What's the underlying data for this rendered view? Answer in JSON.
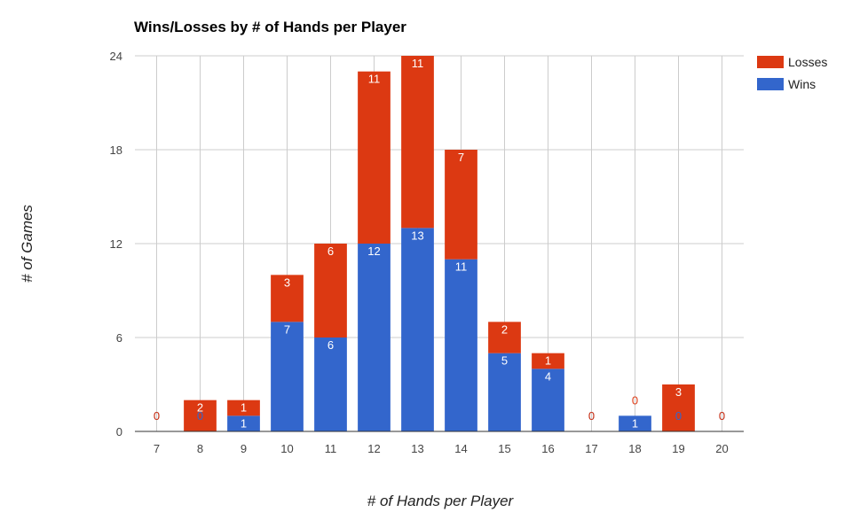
{
  "chart_data": {
    "type": "bar",
    "stacked": true,
    "title": "Wins/Losses by # of Hands per Player",
    "xlabel": "# of Hands per Player",
    "ylabel": "# of Games",
    "categories": [
      "7",
      "8",
      "9",
      "10",
      "11",
      "12",
      "13",
      "14",
      "15",
      "16",
      "17",
      "18",
      "19",
      "20"
    ],
    "ylim": [
      0,
      24
    ],
    "yticks": [
      0,
      6,
      12,
      18,
      24
    ],
    "grid": true,
    "legend_position": "right",
    "series": [
      {
        "name": "Wins",
        "color": "#3366cc",
        "values": [
          0,
          0,
          1,
          7,
          6,
          12,
          13,
          11,
          5,
          4,
          0,
          1,
          0,
          0
        ]
      },
      {
        "name": "Losses",
        "color": "#dc3912",
        "values": [
          0,
          2,
          1,
          3,
          6,
          11,
          11,
          7,
          2,
          1,
          0,
          0,
          3,
          0
        ]
      }
    ],
    "legend_order": [
      "Losses",
      "Wins"
    ]
  }
}
